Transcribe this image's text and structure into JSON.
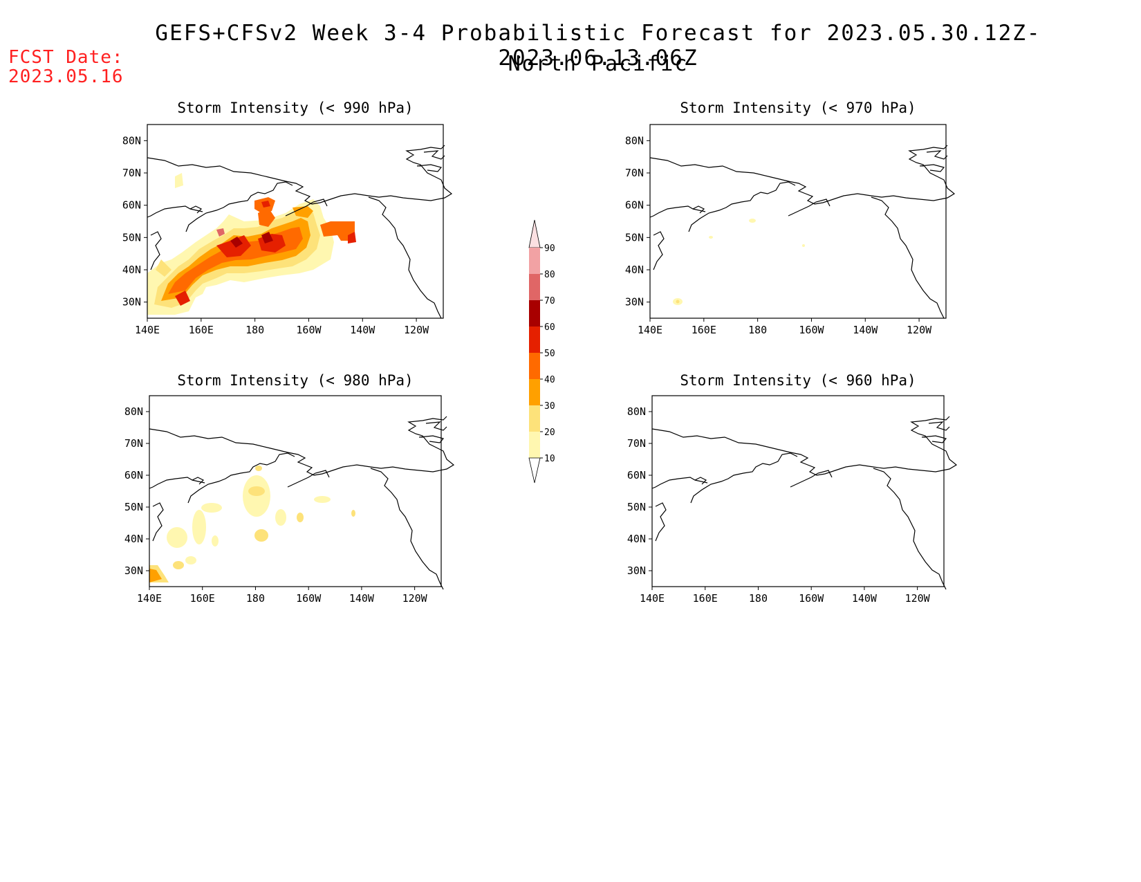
{
  "header": {
    "title": "GEFS+CFSv2 Week 3-4 Probabilistic Forecast for 2023.05.30.12Z-2023.06.13.06Z",
    "subtitle": "North Pacific",
    "fcst_label": "FCST Date:",
    "fcst_date": "2023.05.16"
  },
  "panels": [
    {
      "id": "p990",
      "title": "Storm Intensity (< 990 hPa)"
    },
    {
      "id": "p970",
      "title": "Storm Intensity (< 970 hPa)"
    },
    {
      "id": "p980",
      "title": "Storm Intensity (< 980 hPa)"
    },
    {
      "id": "p960",
      "title": "Storm Intensity (< 960 hPa)"
    }
  ],
  "axes": {
    "lon_ticks": [
      "140E",
      "160E",
      "180",
      "160W",
      "140W",
      "120W"
    ],
    "lat_ticks": [
      "80N",
      "70N",
      "60N",
      "50N",
      "40N",
      "30N"
    ]
  },
  "colorbar": {
    "labels": [
      "90",
      "80",
      "70",
      "60",
      "50",
      "40",
      "30",
      "20",
      "10"
    ],
    "colors": [
      "#fbe0e2",
      "#f2a2a4",
      "#e06666",
      "#a80000",
      "#e52000",
      "#ff6a00",
      "#ffa000",
      "#fde27a",
      "#fff7b0"
    ]
  }
}
